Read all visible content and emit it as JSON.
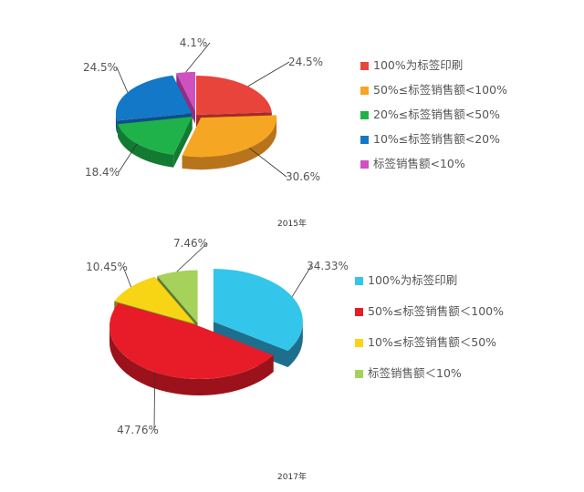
{
  "chart_data": [
    {
      "type": "pie",
      "title": "2015年",
      "legend_position": "right",
      "categories": [
        "100%为标签印刷",
        "50%≤标签销售额<100%",
        "20%≤标签销售额<50%",
        "10%≤标签销售额<20%",
        "标签销售额<10%"
      ],
      "values": [
        24.5,
        30.6,
        18.4,
        24.5,
        4.1
      ],
      "labels": [
        "24.5%",
        "30.6%",
        "18.4%",
        "24.5%",
        "4.1%"
      ],
      "colors": [
        "#e8443c",
        "#f5a623",
        "#1fb24b",
        "#1478c8",
        "#d050c0"
      ],
      "side_colors": [
        "#a82a24",
        "#b8741a",
        "#137a32",
        "#0c4f8a",
        "#8e2f84"
      ]
    },
    {
      "type": "pie",
      "title": "2017年",
      "legend_position": "right",
      "categories": [
        "100%为标签印刷",
        "50%≤标签销售额＜100%",
        "10%≤标签销售额＜50%",
        "标签销售额＜10%"
      ],
      "values": [
        34.33,
        47.76,
        10.45,
        7.46
      ],
      "labels": [
        "34.33%",
        "47.76%",
        "10.45%",
        "7.46%"
      ],
      "colors": [
        "#33c6ea",
        "#e81c28",
        "#f7d414",
        "#a6d15a"
      ],
      "side_colors": [
        "#1e6f8e",
        "#9c121a",
        "#8a7a1c",
        "#5e7d32"
      ]
    }
  ]
}
